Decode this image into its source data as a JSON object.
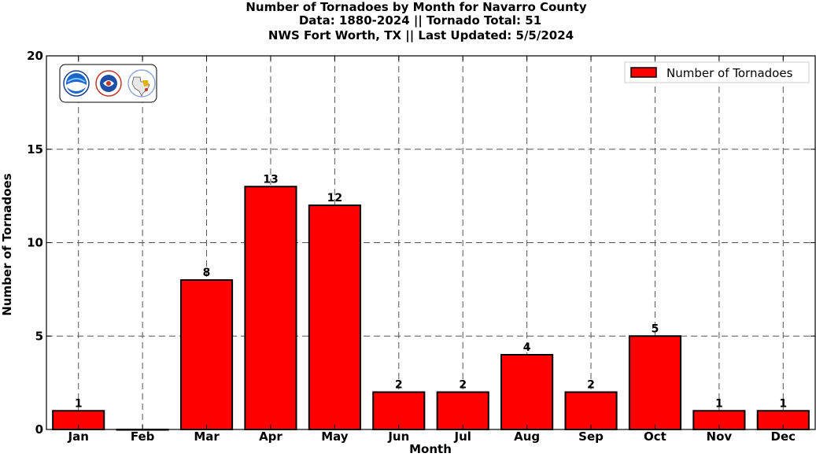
{
  "chart_data": {
    "type": "bar",
    "title_lines": [
      "Number of Tornadoes by Month for Navarro County",
      "Data: 1880-2024 || Tornado Total: 51",
      "NWS Fort Worth, TX || Last Updated: 5/5/2024"
    ],
    "categories": [
      "Jan",
      "Feb",
      "Mar",
      "Apr",
      "May",
      "Jun",
      "Jul",
      "Aug",
      "Sep",
      "Oct",
      "Nov",
      "Dec"
    ],
    "series": [
      {
        "name": "Number of Tornadoes",
        "values": [
          1,
          0,
          8,
          13,
          12,
          2,
          2,
          4,
          2,
          5,
          1,
          1
        ],
        "color": "#ff0000"
      }
    ],
    "bar_labels": [
      "1",
      "",
      "8",
      "13",
      "12",
      "2",
      "2",
      "4",
      "2",
      "5",
      "1",
      "1"
    ],
    "xlabel": "Month",
    "ylabel": "Number of Tornadoes",
    "ylim": [
      0,
      20
    ],
    "yticks": [
      0,
      5,
      10,
      15,
      20
    ],
    "grid": true,
    "legend_position": "top-right",
    "logos": [
      "noaa-logo",
      "nws-logo",
      "texas-map-logo"
    ]
  }
}
